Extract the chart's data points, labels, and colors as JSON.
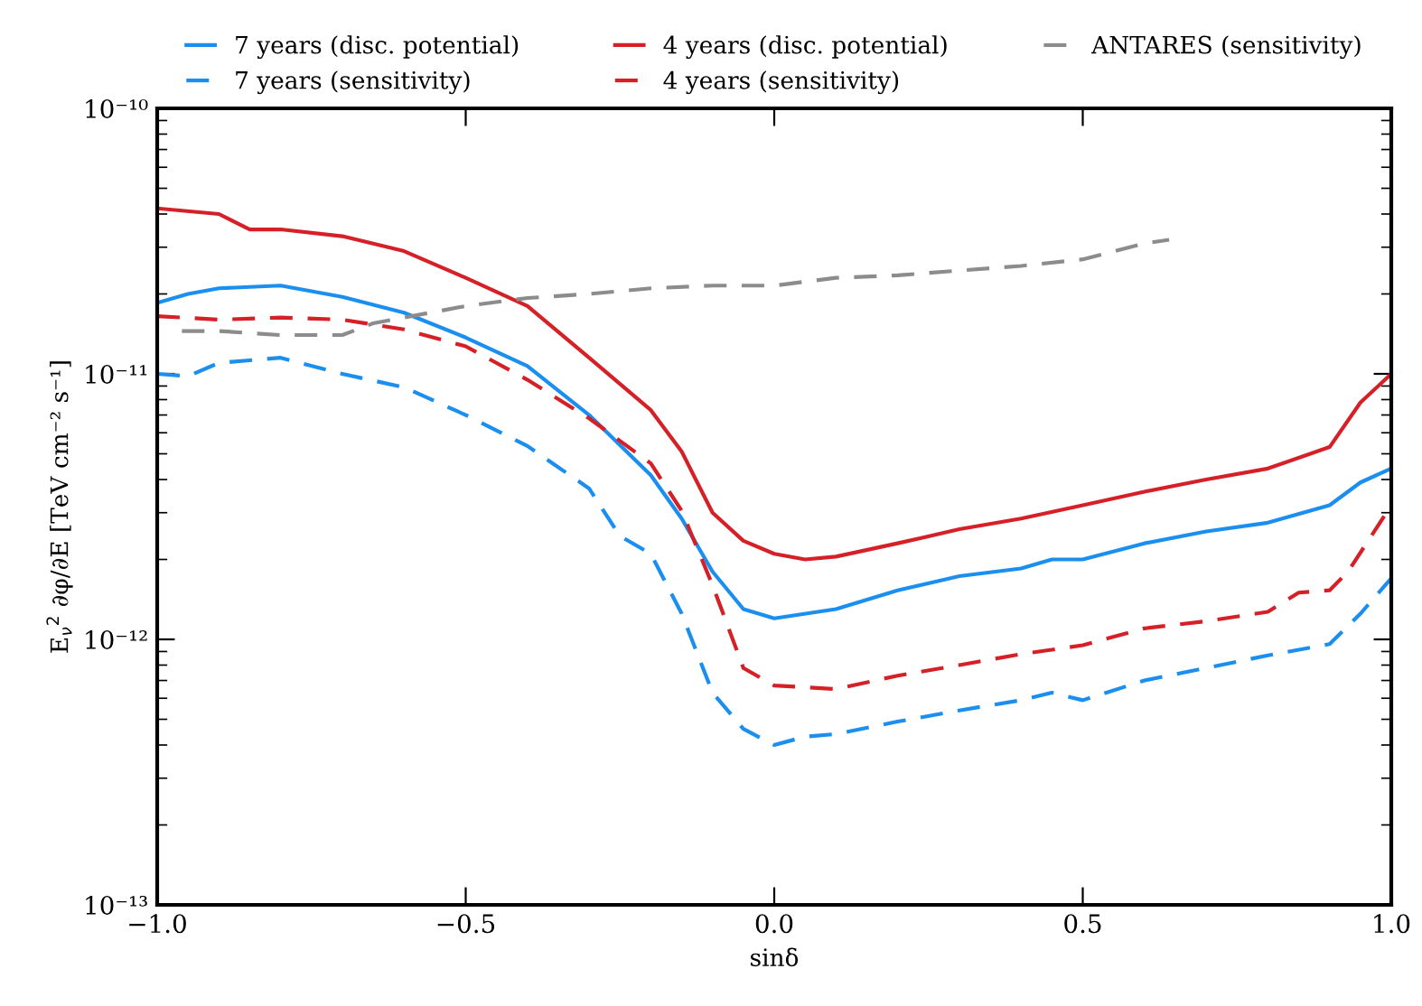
{
  "chart_data": {
    "type": "line",
    "xlabel": "sinδ",
    "ylabel": "E$_{ν}$$^{2}$ ∂φ/∂E [TeV cm⁻² s⁻¹]",
    "log": "y",
    "legend": "top",
    "grid": false,
    "xlim": [
      -1.0,
      1.0
    ],
    "xticks": [
      {
        "value": -1.0,
        "label": "−1.0"
      },
      {
        "value": -0.5,
        "label": "−0.5"
      },
      {
        "value": 0.0,
        "label": "0.0"
      },
      {
        "value": 0.5,
        "label": "0.5"
      },
      {
        "value": 1.0,
        "label": "1.0"
      }
    ],
    "ylim": [
      1e-13,
      1e-10
    ],
    "yticks": [
      {
        "value": 1e-13,
        "label": "10⁻¹³"
      },
      {
        "value": 1e-12,
        "label": "10⁻¹²"
      },
      {
        "value": 1e-11,
        "label": "10⁻¹¹"
      },
      {
        "value": 1e-10,
        "label": "10⁻¹⁰"
      }
    ],
    "series": [
      {
        "name": "7 years (disc. potential)",
        "color": "#1a8ff0",
        "line_style": "solid",
        "x": [
          -1,
          -0.95,
          -0.9,
          -0.8,
          -0.7,
          -0.6,
          -0.5,
          -0.4,
          -0.3,
          -0.2,
          -0.15,
          -0.1,
          -0.05,
          0,
          0.1,
          0.2,
          0.3,
          0.4,
          0.45,
          0.5,
          0.6,
          0.7,
          0.8,
          0.9,
          0.95,
          1.0
        ],
        "values": [
          1.85e-11,
          2e-11,
          2.1e-11,
          2.15e-11,
          1.95e-11,
          1.7e-11,
          1.37e-11,
          1.07e-11,
          7e-12,
          4.15e-12,
          2.85e-12,
          1.8e-12,
          1.3e-12,
          1.2e-12,
          1.3e-12,
          1.53e-12,
          1.73e-12,
          1.85e-12,
          2e-12,
          2e-12,
          2.3e-12,
          2.55e-12,
          2.75e-12,
          3.2e-12,
          3.9e-12,
          4.4e-12
        ]
      },
      {
        "name": "7 years (sensitivity)",
        "color": "#1a8ff0",
        "line_style": "dashed",
        "x": [
          -1,
          -0.95,
          -0.9,
          -0.8,
          -0.7,
          -0.6,
          -0.5,
          -0.4,
          -0.3,
          -0.25,
          -0.2,
          -0.15,
          -0.1,
          -0.05,
          0,
          0.05,
          0.1,
          0.2,
          0.3,
          0.4,
          0.45,
          0.5,
          0.6,
          0.7,
          0.8,
          0.9,
          0.95,
          1.0
        ],
        "values": [
          1e-11,
          9.8e-12,
          1.1e-11,
          1.15e-11,
          1e-11,
          8.9e-12,
          7e-12,
          5.35e-12,
          3.7e-12,
          2.45e-12,
          2.1e-12,
          1.25e-12,
          6.3e-13,
          4.6e-13,
          4e-13,
          4.3e-13,
          4.4e-13,
          4.9e-13,
          5.4e-13,
          5.9e-13,
          6.3e-13,
          5.9e-13,
          7e-13,
          7.8e-13,
          8.7e-13,
          9.6e-13,
          1.25e-12,
          1.7e-12
        ]
      },
      {
        "name": "4 years (disc. potential)",
        "color": "#d62027",
        "line_style": "solid",
        "x": [
          -1,
          -0.9,
          -0.85,
          -0.8,
          -0.7,
          -0.6,
          -0.5,
          -0.4,
          -0.3,
          -0.2,
          -0.15,
          -0.1,
          -0.05,
          0,
          0.05,
          0.1,
          0.2,
          0.3,
          0.4,
          0.5,
          0.6,
          0.7,
          0.8,
          0.9,
          0.95,
          1.0
        ],
        "values": [
          4.2e-11,
          4e-11,
          3.5e-11,
          3.5e-11,
          3.3e-11,
          2.9e-11,
          2.3e-11,
          1.8e-11,
          1.15e-11,
          7.3e-12,
          5.1e-12,
          3e-12,
          2.35e-12,
          2.1e-12,
          2e-12,
          2.05e-12,
          2.3e-12,
          2.6e-12,
          2.85e-12,
          3.2e-12,
          3.6e-12,
          4e-12,
          4.4e-12,
          5.3e-12,
          7.8e-12,
          1e-11
        ]
      },
      {
        "name": "4 years (sensitivity)",
        "color": "#d62027",
        "line_style": "dashed",
        "x": [
          -1,
          -0.9,
          -0.8,
          -0.7,
          -0.6,
          -0.5,
          -0.4,
          -0.3,
          -0.2,
          -0.15,
          -0.1,
          -0.05,
          0,
          0.1,
          0.2,
          0.3,
          0.4,
          0.5,
          0.6,
          0.7,
          0.8,
          0.85,
          0.9,
          0.93,
          1.0
        ],
        "values": [
          1.65e-11,
          1.6e-11,
          1.63e-11,
          1.6e-11,
          1.47e-11,
          1.27e-11,
          9.5e-12,
          6.8e-12,
          4.6e-12,
          3.05e-12,
          1.6e-12,
          7.8e-13,
          6.7e-13,
          6.5e-13,
          7.3e-13,
          8e-13,
          8.8e-13,
          9.5e-13,
          1.1e-12,
          1.17e-12,
          1.27e-12,
          1.5e-12,
          1.53e-12,
          1.8e-12,
          3.2e-12
        ]
      },
      {
        "name": "ANTARES (sensitivity)",
        "color": "#8c8c8c",
        "line_style": "dashed",
        "x": [
          -0.96,
          -0.9,
          -0.8,
          -0.7,
          -0.65,
          -0.6,
          -0.5,
          -0.4,
          -0.3,
          -0.2,
          -0.1,
          0,
          0.1,
          0.2,
          0.3,
          0.4,
          0.5,
          0.6,
          0.64
        ],
        "values": [
          1.45e-11,
          1.45e-11,
          1.4e-11,
          1.4e-11,
          1.55e-11,
          1.63e-11,
          1.8e-11,
          1.93e-11,
          2e-11,
          2.1e-11,
          2.15e-11,
          2.15e-11,
          2.3e-11,
          2.35e-11,
          2.45e-11,
          2.55e-11,
          2.7e-11,
          3.1e-11,
          3.2e-11
        ]
      }
    ]
  }
}
